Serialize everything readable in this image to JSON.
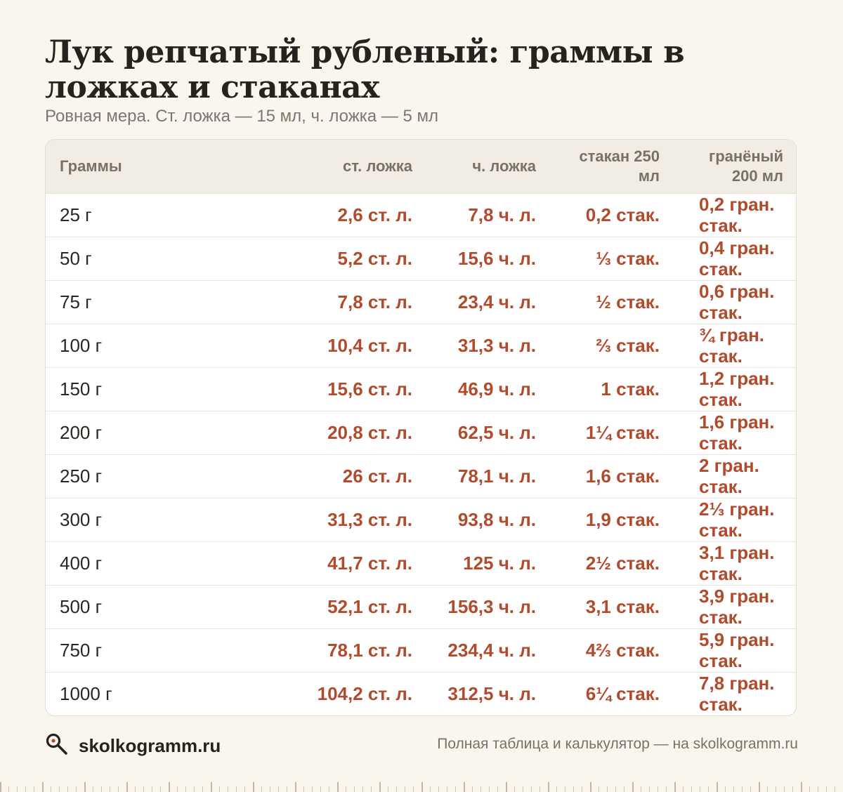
{
  "header": {
    "title": "Лук репчатый рубленый: граммы в ложках и стаканах",
    "subtitle": "Ровная мера. Ст. ложка — 15 мл, ч. ложка — 5 мл"
  },
  "table": {
    "columns": [
      "Граммы",
      "ст. ложка",
      "ч. ложка",
      "стакан 250 мл",
      "гранёный 200 мл"
    ],
    "rows": [
      [
        "25 г",
        "2,6 ст. л.",
        "7,8 ч. л.",
        "0,2 стак.",
        "0,2 гран. стак."
      ],
      [
        "50 г",
        "5,2 ст. л.",
        "15,6 ч. л.",
        "⅓ стак.",
        "0,4 гран. стак."
      ],
      [
        "75 г",
        "7,8 ст. л.",
        "23,4 ч. л.",
        "½ стак.",
        "0,6 гран. стак."
      ],
      [
        "100 г",
        "10,4 ст. л.",
        "31,3 ч. л.",
        "⅔ стак.",
        "¾ гран. стак."
      ],
      [
        "150 г",
        "15,6 ст. л.",
        "46,9 ч. л.",
        "1 стак.",
        "1,2 гран. стак."
      ],
      [
        "200 г",
        "20,8 ст. л.",
        "62,5 ч. л.",
        "1¼ стак.",
        "1,6 гран. стак."
      ],
      [
        "250 г",
        "26 ст. л.",
        "78,1 ч. л.",
        "1,6 стак.",
        "2 гран. стак."
      ],
      [
        "300 г",
        "31,3 ст. л.",
        "93,8 ч. л.",
        "1,9 стак.",
        "2⅓ гран. стак."
      ],
      [
        "400 г",
        "41,7 ст. л.",
        "125 ч. л.",
        "2½ стак.",
        "3,1 гран. стак."
      ],
      [
        "500 г",
        "52,1 ст. л.",
        "156,3 ч. л.",
        "3,1 стак.",
        "3,9 гран. стак."
      ],
      [
        "750 г",
        "78,1 ст. л.",
        "234,4 ч. л.",
        "4⅔ стак.",
        "5,9 гран. стак."
      ],
      [
        "1000 г",
        "104,2 ст. л.",
        "312,5 ч. л.",
        "6¼ стак.",
        "7,8 гран. стак."
      ]
    ]
  },
  "footer": {
    "brand": "skolkogramm.ru",
    "brand_icon": "magnifier-icon",
    "note": "Полная таблица и калькулятор — на skolkogramm.ru"
  },
  "colors": {
    "accent": "#b24a2c",
    "background": "#faf6ee",
    "header_row": "#f2ede4"
  }
}
